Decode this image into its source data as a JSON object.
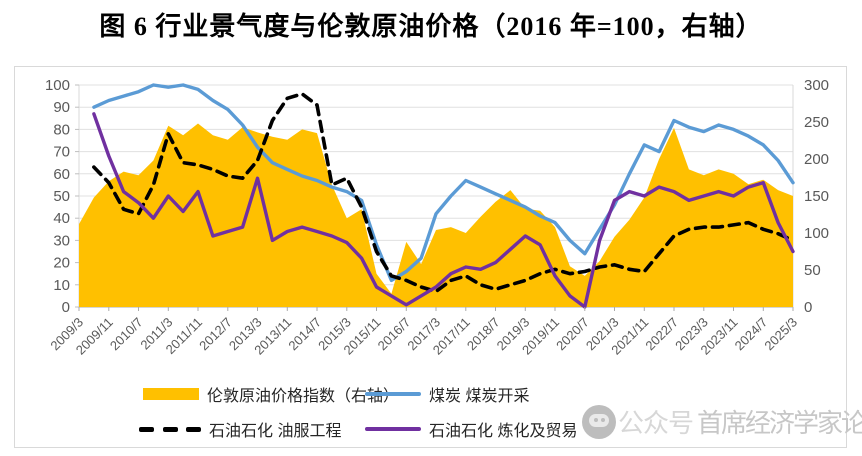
{
  "page": {
    "title": "图 6 行业景气度与伦敦原油价格（2016 年=100，右轴）"
  },
  "chart": {
    "left_axis_ticks": [
      0,
      10,
      20,
      30,
      40,
      50,
      60,
      70,
      80,
      90,
      100
    ],
    "right_axis_ticks": [
      0,
      50,
      100,
      150,
      200,
      250,
      300
    ],
    "x_tick_labels": [
      "2009/3",
      "2009/11",
      "2010/7",
      "2011/3",
      "2011/11",
      "2012/7",
      "2013/3",
      "2013/11",
      "2014/7",
      "2015/3",
      "2015/11",
      "2016/7",
      "2017/3",
      "2017/11",
      "2018/7",
      "2019/3",
      "2019/11",
      "2020/7",
      "2021/3",
      "2021/11",
      "2022/7",
      "2023/3",
      "2023/11",
      "2024/7",
      "2025/3"
    ]
  },
  "chart_data": {
    "type": "combo-area-line",
    "title": "图 6 行业景气度与伦敦原油价格（2016 年=100，右轴）",
    "x": [
      "2009/3",
      "2009/7",
      "2009/11",
      "2010/3",
      "2010/7",
      "2010/11",
      "2011/3",
      "2011/7",
      "2011/11",
      "2012/3",
      "2012/7",
      "2012/11",
      "2013/3",
      "2013/7",
      "2013/11",
      "2014/3",
      "2014/7",
      "2014/11",
      "2015/3",
      "2015/7",
      "2015/11",
      "2016/3",
      "2016/7",
      "2016/11",
      "2017/3",
      "2017/7",
      "2017/11",
      "2018/3",
      "2018/7",
      "2018/11",
      "2019/3",
      "2019/7",
      "2019/11",
      "2020/3",
      "2020/7",
      "2020/11",
      "2021/3",
      "2021/7",
      "2021/11",
      "2022/3",
      "2022/7",
      "2022/11",
      "2023/3",
      "2023/7",
      "2023/11",
      "2024/3",
      "2024/7",
      "2024/11",
      "2025/3"
    ],
    "x_tick_every": 2,
    "left_ylim": [
      0,
      100
    ],
    "right_ylim": [
      0,
      300
    ],
    "grid": true,
    "legend_position": "bottom",
    "series": [
      {
        "name": "伦敦原油价格指数（右轴）",
        "type": "area",
        "axis": "right",
        "color": "#FFC000",
        "values": [
          112,
          148,
          170,
          183,
          178,
          198,
          245,
          232,
          248,
          232,
          226,
          243,
          236,
          230,
          226,
          240,
          235,
          165,
          120,
          132,
          45,
          18,
          88,
          58,
          104,
          108,
          100,
          122,
          142,
          158,
          133,
          130,
          108,
          55,
          42,
          62,
          95,
          118,
          148,
          200,
          242,
          186,
          178,
          186,
          180,
          166,
          172,
          158,
          150
        ]
      },
      {
        "name": "煤炭 煤炭开采",
        "type": "line",
        "axis": "left",
        "color": "#5B9BD5",
        "width": 3.4,
        "values": [
          null,
          90,
          93,
          95,
          97,
          100,
          99,
          100,
          98,
          93,
          89,
          82,
          72,
          65,
          62,
          59,
          57,
          54,
          52,
          48,
          28,
          12,
          16,
          22,
          42,
          50,
          57,
          54,
          51,
          48,
          45,
          41,
          38,
          30,
          24,
          35,
          46,
          60,
          73,
          70,
          84,
          81,
          79,
          82,
          80,
          77,
          73,
          66,
          56
        ]
      },
      {
        "name": "石油石化 油服工程",
        "type": "line",
        "axis": "left",
        "color": "#000000",
        "width": 3.6,
        "dash": "10 7",
        "values": [
          null,
          63,
          56,
          44,
          42,
          55,
          78,
          65,
          64,
          62,
          59,
          58,
          66,
          84,
          94,
          96,
          91,
          55,
          58,
          45,
          25,
          14,
          12,
          9,
          7,
          12,
          14,
          10,
          8,
          10,
          12,
          15,
          17,
          15,
          16,
          18,
          19,
          17,
          16,
          24,
          32,
          35,
          36,
          36,
          37,
          38,
          35,
          33,
          30
        ]
      },
      {
        "name": "石油石化 炼化及贸易",
        "type": "line",
        "axis": "left",
        "color": "#7030A0",
        "width": 3.4,
        "values": [
          null,
          87,
          68,
          52,
          47,
          40,
          50,
          43,
          52,
          32,
          34,
          36,
          58,
          30,
          34,
          36,
          34,
          32,
          29,
          22,
          9,
          5,
          1,
          5,
          9,
          15,
          18,
          17,
          20,
          26,
          32,
          28,
          14,
          5,
          0,
          30,
          48,
          52,
          50,
          54,
          52,
          48,
          50,
          52,
          50,
          54,
          56,
          38,
          25
        ]
      }
    ]
  },
  "legend": {
    "row1": [
      "伦敦原油价格指数（右轴）",
      "煤炭 煤炭开采"
    ],
    "row2": [
      "石油石化 油服工程",
      "石油石化 炼化及贸易"
    ]
  },
  "watermark": {
    "prefix": "公众号",
    "text": "首席经济学家论坛"
  },
  "colors": {
    "oil_area": "#FFC000",
    "coal_line": "#5B9BD5",
    "service_line": "#000000",
    "refining_line": "#7030A0",
    "grid": "#E0E0E0",
    "axis_text": "#595959",
    "card_border": "#D9D9D9",
    "watermark_text": "#C7C7C7"
  }
}
